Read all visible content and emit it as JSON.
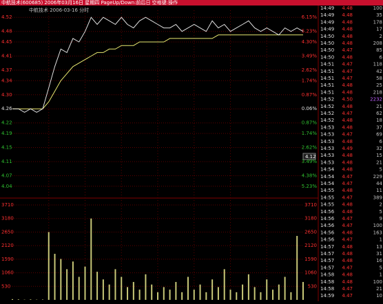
{
  "header": {
    "title": "中航技术(600685) 2006年03月16日 星期四 PageUp/Down:前后日 空格键:操作"
  },
  "chart_data": {
    "type": "line",
    "title": "中航技术  2006-03-16 分时",
    "cursor_label": "4.12",
    "price": [
      4.26,
      4.26,
      4.25,
      4.26,
      4.25,
      4.26,
      4.32,
      4.38,
      4.43,
      4.42,
      4.46,
      4.45,
      4.48,
      4.52,
      4.5,
      4.52,
      4.51,
      4.5,
      4.52,
      4.5,
      4.49,
      4.51,
      4.52,
      4.51,
      4.5,
      4.49,
      4.49,
      4.5,
      4.48,
      4.49,
      4.5,
      4.49,
      4.48,
      4.51,
      4.49,
      4.5,
      4.48,
      4.49,
      4.5,
      4.51,
      4.49,
      4.48,
      4.49,
      4.48,
      4.47,
      4.49,
      4.48,
      4.49,
      4.48
    ],
    "avg": [
      4.26,
      4.26,
      4.26,
      4.26,
      4.26,
      4.26,
      4.28,
      4.31,
      4.34,
      4.36,
      4.38,
      4.39,
      4.4,
      4.41,
      4.42,
      4.42,
      4.43,
      4.43,
      4.44,
      4.44,
      4.44,
      4.45,
      4.45,
      4.45,
      4.45,
      4.45,
      4.46,
      4.46,
      4.46,
      4.46,
      4.46,
      4.46,
      4.46,
      4.46,
      4.47,
      4.47,
      4.47,
      4.47,
      4.47,
      4.47,
      4.47,
      4.47,
      4.47,
      4.47,
      4.47,
      4.47,
      4.47,
      4.47,
      4.47
    ],
    "price_color": "#e0e0e0",
    "avg_color": "#e8e870",
    "ylim": [
      4.02,
      4.54
    ],
    "yticks": [
      4.52,
      4.48,
      4.45,
      4.41,
      4.37,
      4.34,
      {
        "value": 4.3,
        "label": "4.30"
      },
      4.26,
      4.22,
      4.19,
      4.15,
      4.11,
      4.07,
      4.04
    ],
    "pct_labels": [
      "6.15%",
      "5.23%",
      "4.30%",
      "3.49%",
      "2.62%",
      "1.74%",
      "0.87%",
      "0.06%",
      "0.87%",
      "1.74%",
      "2.62%",
      "3.49%",
      "4.38%",
      "5.23%"
    ],
    "base": 4.26,
    "volume": [
      30,
      20,
      10,
      20,
      10,
      15,
      2650,
      1800,
      1600,
      1200,
      1500,
      900,
      1300,
      3180,
      1100,
      800,
      600,
      1200,
      900,
      500,
      700,
      400,
      1000,
      600,
      300,
      500,
      400,
      700,
      300,
      900,
      400,
      600,
      300,
      800,
      500,
      1200,
      400,
      300,
      600,
      1000,
      500,
      300,
      800,
      400,
      600,
      900,
      300,
      2500,
      700
    ],
    "volume_color": "#c8c878",
    "vlim": [
      0,
      3710
    ],
    "vticks": [
      3710,
      3180,
      2650,
      2120,
      1590,
      1060,
      530
    ]
  },
  "trades": {
    "rows": [
      [
        "14:49",
        "4.48",
        100
      ],
      [
        "14:49",
        "4.48",
        35
      ],
      [
        "14:49",
        "4.48",
        178
      ],
      [
        "14:49",
        "4.48",
        17
      ],
      [
        "14:50",
        "4.48",
        2
      ],
      [
        "14:50",
        "4.48",
        208
      ],
      [
        "14:50",
        "4.47",
        85
      ],
      [
        "14:50",
        "4.48",
        6
      ],
      [
        "14:51",
        "4.47",
        118
      ],
      [
        "14:51",
        "4.47",
        42
      ],
      [
        "14:51",
        "4.47",
        58
      ],
      [
        "14:51",
        "4.48",
        25
      ],
      [
        "14:51",
        "4.48",
        218
      ],
      [
        "14:52",
        "4.50",
        2232
      ],
      [
        "14:52",
        "4.48",
        21
      ],
      [
        "14:52",
        "4.47",
        62
      ],
      [
        "14:52",
        "4.48",
        18
      ],
      [
        "14:53",
        "4.48",
        37
      ],
      [
        "14:53",
        "4.47",
        69
      ],
      [
        "14:53",
        "4.48",
        6
      ],
      [
        "14:53",
        "4.49",
        32
      ],
      [
        "14:53",
        "4.48",
        15
      ],
      [
        "14:53",
        "4.48",
        21
      ],
      [
        "14:54",
        "4.48",
        5
      ],
      [
        "14:54",
        "4.47",
        229
      ],
      [
        "14:54",
        "4.47",
        44
      ],
      [
        "14:55",
        "4.48",
        11
      ],
      [
        "14:55",
        "4.47",
        389
      ],
      [
        "14:55",
        "4.48",
        2
      ],
      [
        "14:56",
        "4.48",
        5
      ],
      [
        "14:56",
        "4.47",
        9
      ],
      [
        "14:56",
        "4.47",
        100
      ],
      [
        "14:56",
        "4.48",
        163
      ],
      [
        "14:56",
        "4.47",
        1
      ],
      [
        "14:57",
        "4.48",
        13
      ],
      [
        "14:57",
        "4.48",
        31
      ],
      [
        "14:57",
        "4.48",
        16
      ],
      [
        "14:57",
        "4.47",
        5
      ],
      [
        "14:58",
        "4.48",
        1
      ],
      [
        "14:58",
        "4.48",
        100
      ],
      [
        "14:58",
        "4.47",
        21
      ],
      [
        "14:59",
        "4.47",
        10
      ]
    ]
  }
}
